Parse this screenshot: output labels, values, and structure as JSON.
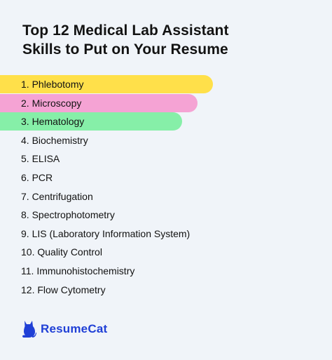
{
  "title_lines": [
    "Top 12 Medical Lab Assistant",
    "Skills to Put on Your Resume"
  ],
  "skills": [
    {
      "label": "1. Phlebotomy",
      "highlight": "#ffe04a"
    },
    {
      "label": "2. Microscopy",
      "highlight": "#f5a3d4"
    },
    {
      "label": "3. Hematology",
      "highlight": "#86efa8"
    },
    {
      "label": "4. Biochemistry"
    },
    {
      "label": "5. ELISA"
    },
    {
      "label": "6. PCR"
    },
    {
      "label": "7. Centrifugation"
    },
    {
      "label": "8. Spectrophotometry"
    },
    {
      "label": "9. LIS (Laboratory Information System)"
    },
    {
      "label": "10. Quality Control"
    },
    {
      "label": "11. Immunohistochemistry"
    },
    {
      "label": "12. Flow Cytometry"
    }
  ],
  "brand": {
    "name": "ResumeCat",
    "logo_icon": "cat-icon",
    "color": "#1f3fd6"
  },
  "colors": {
    "background": "#f0f4f9",
    "text": "#121212"
  }
}
